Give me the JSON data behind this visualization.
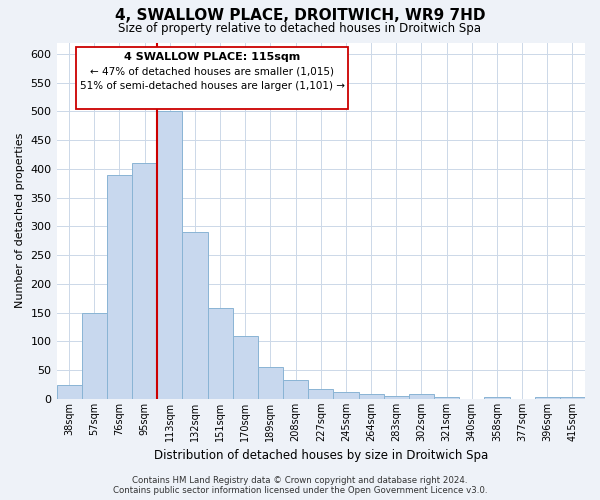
{
  "title": "4, SWALLOW PLACE, DROITWICH, WR9 7HD",
  "subtitle": "Size of property relative to detached houses in Droitwich Spa",
  "xlabel": "Distribution of detached houses by size in Droitwich Spa",
  "ylabel": "Number of detached properties",
  "bar_labels": [
    "38sqm",
    "57sqm",
    "76sqm",
    "95sqm",
    "113sqm",
    "132sqm",
    "151sqm",
    "170sqm",
    "189sqm",
    "208sqm",
    "227sqm",
    "245sqm",
    "264sqm",
    "283sqm",
    "302sqm",
    "321sqm",
    "340sqm",
    "358sqm",
    "377sqm",
    "396sqm",
    "415sqm"
  ],
  "bar_values": [
    25,
    150,
    390,
    410,
    500,
    290,
    158,
    110,
    55,
    33,
    18,
    12,
    8,
    5,
    8,
    3,
    0,
    3,
    0,
    3,
    3
  ],
  "bar_color": "#c8d8ee",
  "bar_edge_color": "#7aaded6",
  "vline_color": "#cc0000",
  "ylim": [
    0,
    620
  ],
  "yticks": [
    0,
    50,
    100,
    150,
    200,
    250,
    300,
    350,
    400,
    450,
    500,
    550,
    600
  ],
  "annotation_title": "4 SWALLOW PLACE: 115sqm",
  "annotation_line1": "← 47% of detached houses are smaller (1,015)",
  "annotation_line2": "51% of semi-detached houses are larger (1,101) →",
  "footer_line1": "Contains HM Land Registry data © Crown copyright and database right 2024.",
  "footer_line2": "Contains public sector information licensed under the Open Government Licence v3.0.",
  "bg_color": "#eef2f8",
  "plot_bg_color": "#ffffff",
  "grid_color": "#ccd8e8"
}
